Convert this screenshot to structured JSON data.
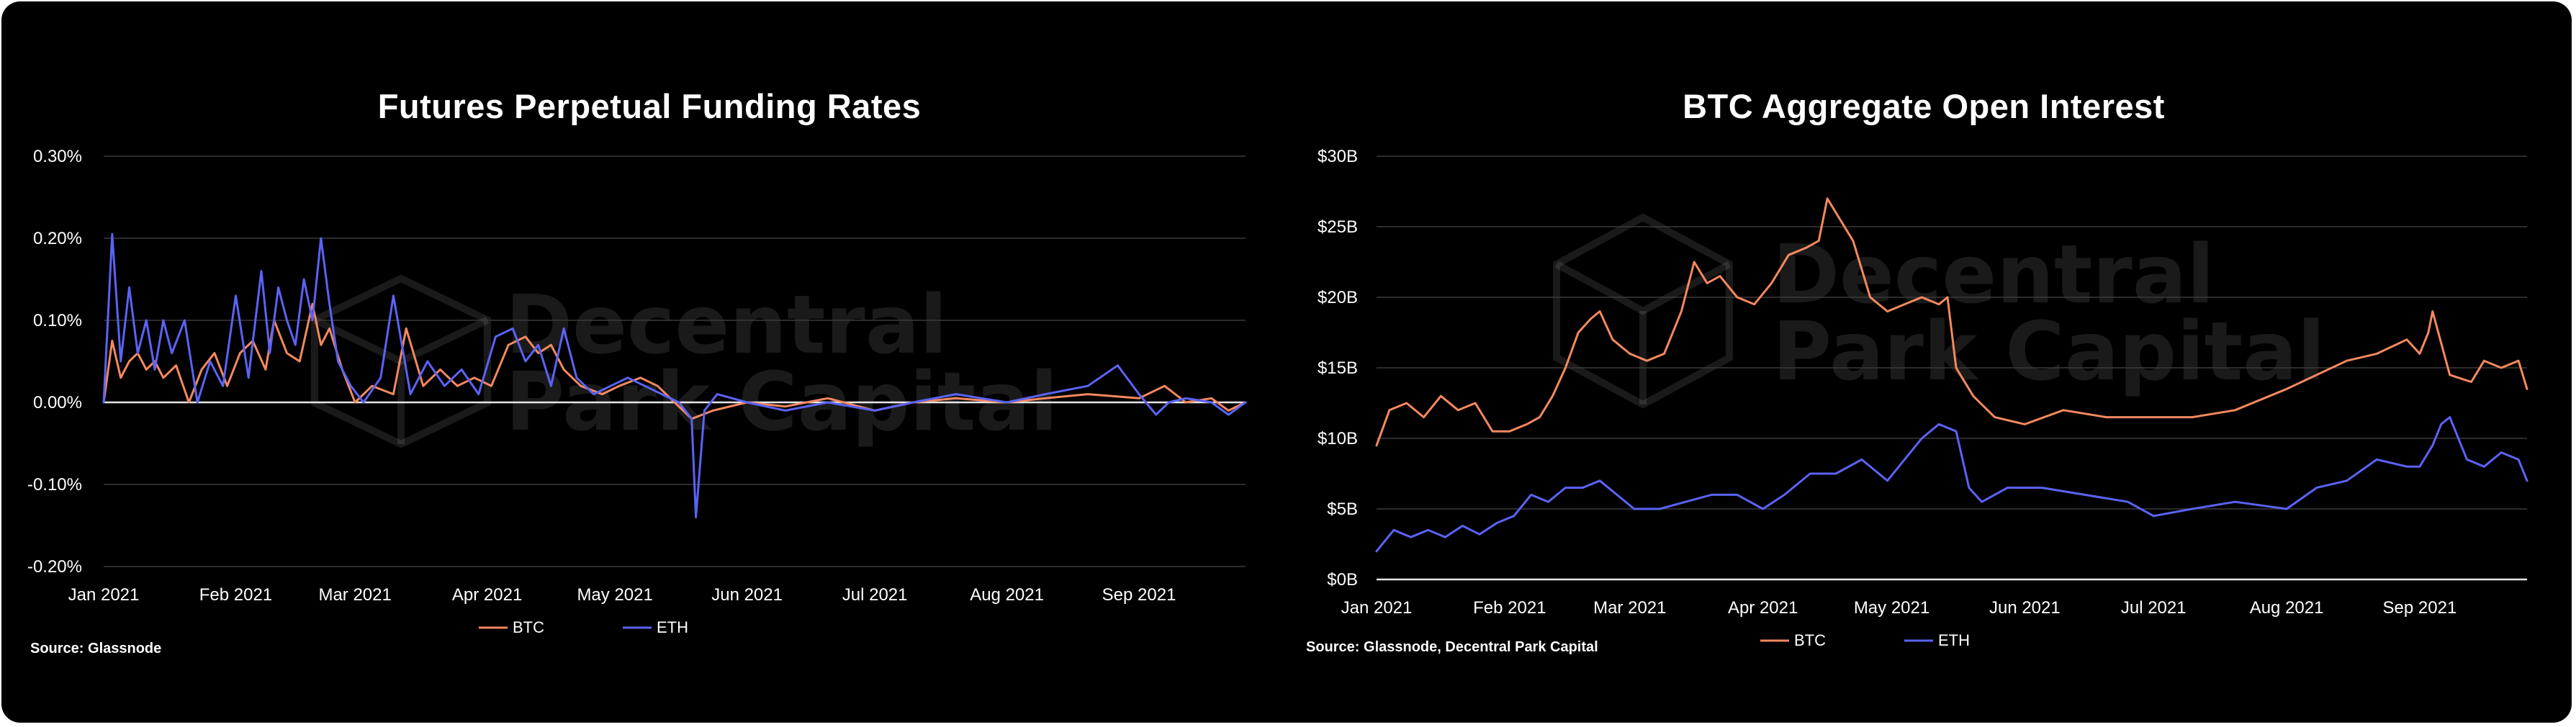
{
  "colors": {
    "btc": "#f4895f",
    "eth": "#5b63f5",
    "grid": "#3a3a3a",
    "text": "#ffffff",
    "background": "#000000"
  },
  "watermark": {
    "line1": "Decentral",
    "line2": "Park Capital"
  },
  "chart_data": [
    {
      "type": "line",
      "title": "Futures Perpetual Funding Rates",
      "source": "Source: Glassnode",
      "x_range": [
        "2021-01-01",
        "2021-09-26"
      ],
      "x_ticks": [
        "Jan 2021",
        "Feb 2021",
        "Mar 2021",
        "Apr 2021",
        "May 2021",
        "Jun 2021",
        "Jul 2021",
        "Aug 2021",
        "Sep 2021"
      ],
      "x_tick_dates": [
        "2021-01-01",
        "2021-02-01",
        "2021-03-01",
        "2021-04-01",
        "2021-05-01",
        "2021-06-01",
        "2021-07-01",
        "2021-08-01",
        "2021-09-01"
      ],
      "y_ticks": [
        "0.30%",
        "0.20%",
        "0.10%",
        "0.00%",
        "-0.10%",
        "-0.20%"
      ],
      "y_tick_values": [
        0.3,
        0.2,
        0.1,
        0.0,
        -0.1,
        -0.2
      ],
      "ylim": [
        -0.2,
        0.3
      ],
      "grid": true,
      "legend": "bottom-center",
      "series": [
        {
          "name": "BTC",
          "dates": [
            "2021-01-01",
            "2021-01-03",
            "2021-01-05",
            "2021-01-07",
            "2021-01-09",
            "2021-01-11",
            "2021-01-13",
            "2021-01-15",
            "2021-01-18",
            "2021-01-21",
            "2021-01-24",
            "2021-01-27",
            "2021-01-30",
            "2021-02-02",
            "2021-02-05",
            "2021-02-08",
            "2021-02-10",
            "2021-02-13",
            "2021-02-16",
            "2021-02-19",
            "2021-02-21",
            "2021-02-23",
            "2021-02-26",
            "2021-03-01",
            "2021-03-05",
            "2021-03-10",
            "2021-03-13",
            "2021-03-17",
            "2021-03-21",
            "2021-03-25",
            "2021-03-29",
            "2021-04-02",
            "2021-04-06",
            "2021-04-10",
            "2021-04-13",
            "2021-04-16",
            "2021-04-19",
            "2021-04-23",
            "2021-04-28",
            "2021-05-02",
            "2021-05-07",
            "2021-05-11",
            "2021-05-15",
            "2021-05-19",
            "2021-05-24",
            "2021-06-01",
            "2021-06-10",
            "2021-06-20",
            "2021-07-01",
            "2021-07-10",
            "2021-07-20",
            "2021-08-01",
            "2021-08-10",
            "2021-08-20",
            "2021-09-01",
            "2021-09-07",
            "2021-09-12",
            "2021-09-18",
            "2021-09-22",
            "2021-09-26"
          ],
          "values": [
            0.0,
            0.075,
            0.03,
            0.05,
            0.06,
            0.04,
            0.05,
            0.03,
            0.045,
            0.0,
            0.04,
            0.06,
            0.02,
            0.06,
            0.075,
            0.04,
            0.1,
            0.06,
            0.05,
            0.12,
            0.07,
            0.09,
            0.04,
            0.0,
            0.02,
            0.01,
            0.09,
            0.02,
            0.04,
            0.02,
            0.03,
            0.02,
            0.07,
            0.08,
            0.06,
            0.07,
            0.04,
            0.02,
            0.01,
            0.02,
            0.03,
            0.02,
            0.0,
            -0.02,
            -0.01,
            0.0,
            -0.005,
            0.005,
            -0.01,
            0.0,
            0.005,
            0.0,
            0.005,
            0.01,
            0.005,
            0.02,
            0.0,
            0.005,
            -0.01,
            0.0
          ]
        },
        {
          "name": "ETH",
          "dates": [
            "2021-01-01",
            "2021-01-03",
            "2021-01-05",
            "2021-01-07",
            "2021-01-09",
            "2021-01-11",
            "2021-01-13",
            "2021-01-15",
            "2021-01-17",
            "2021-01-20",
            "2021-01-23",
            "2021-01-26",
            "2021-01-29",
            "2021-02-01",
            "2021-02-04",
            "2021-02-07",
            "2021-02-09",
            "2021-02-11",
            "2021-02-13",
            "2021-02-15",
            "2021-02-17",
            "2021-02-19",
            "2021-02-21",
            "2021-02-23",
            "2021-02-25",
            "2021-02-28",
            "2021-03-03",
            "2021-03-07",
            "2021-03-10",
            "2021-03-14",
            "2021-03-18",
            "2021-03-22",
            "2021-03-26",
            "2021-03-30",
            "2021-04-03",
            "2021-04-07",
            "2021-04-10",
            "2021-04-13",
            "2021-04-16",
            "2021-04-19",
            "2021-04-22",
            "2021-04-26",
            "2021-04-30",
            "2021-05-04",
            "2021-05-08",
            "2021-05-12",
            "2021-05-16",
            "2021-05-19",
            "2021-05-20",
            "2021-05-22",
            "2021-05-25",
            "2021-06-01",
            "2021-06-10",
            "2021-06-20",
            "2021-07-01",
            "2021-07-10",
            "2021-07-20",
            "2021-08-01",
            "2021-08-10",
            "2021-08-20",
            "2021-08-27",
            "2021-09-01",
            "2021-09-05",
            "2021-09-08",
            "2021-09-12",
            "2021-09-18",
            "2021-09-22",
            "2021-09-26"
          ],
          "values": [
            0.0,
            0.205,
            0.05,
            0.14,
            0.06,
            0.1,
            0.04,
            0.1,
            0.06,
            0.1,
            0.0,
            0.05,
            0.02,
            0.13,
            0.03,
            0.16,
            0.06,
            0.14,
            0.1,
            0.07,
            0.15,
            0.1,
            0.2,
            0.12,
            0.05,
            0.02,
            0.0,
            0.03,
            0.13,
            0.01,
            0.05,
            0.02,
            0.04,
            0.01,
            0.08,
            0.09,
            0.05,
            0.07,
            0.02,
            0.09,
            0.03,
            0.01,
            0.02,
            0.03,
            0.02,
            0.01,
            0.0,
            -0.02,
            -0.14,
            -0.01,
            0.01,
            0.0,
            -0.01,
            0.0,
            -0.01,
            0.0,
            0.01,
            0.0,
            0.01,
            0.02,
            0.045,
            0.01,
            -0.015,
            0.0,
            0.005,
            0.0,
            -0.015,
            0.0
          ]
        }
      ]
    },
    {
      "type": "line",
      "title": "BTC Aggregate Open Interest",
      "source": "Source: Glassnode, Decentral Park Capital",
      "x_range": [
        "2021-01-01",
        "2021-09-26"
      ],
      "x_ticks": [
        "Jan 2021",
        "Feb 2021",
        "Mar 2021",
        "Apr 2021",
        "May 2021",
        "Jun 2021",
        "Jul 2021",
        "Aug 2021",
        "Sep 2021"
      ],
      "x_tick_dates": [
        "2021-01-01",
        "2021-02-01",
        "2021-03-01",
        "2021-04-01",
        "2021-05-01",
        "2021-06-01",
        "2021-07-01",
        "2021-08-01",
        "2021-09-01"
      ],
      "y_ticks": [
        "$30B",
        "$25B",
        "$20B",
        "$15B",
        "$10B",
        "$5B",
        "$0B"
      ],
      "y_tick_values": [
        30,
        25,
        20,
        15,
        10,
        5,
        0
      ],
      "ylim": [
        0,
        30
      ],
      "grid": true,
      "legend": "bottom-center",
      "series": [
        {
          "name": "BTC",
          "dates": [
            "2021-01-01",
            "2021-01-04",
            "2021-01-08",
            "2021-01-12",
            "2021-01-16",
            "2021-01-20",
            "2021-01-24",
            "2021-01-28",
            "2021-02-01",
            "2021-02-05",
            "2021-02-08",
            "2021-02-11",
            "2021-02-14",
            "2021-02-17",
            "2021-02-20",
            "2021-02-22",
            "2021-02-25",
            "2021-03-01",
            "2021-03-05",
            "2021-03-09",
            "2021-03-13",
            "2021-03-16",
            "2021-03-19",
            "2021-03-22",
            "2021-03-26",
            "2021-03-30",
            "2021-04-03",
            "2021-04-07",
            "2021-04-11",
            "2021-04-14",
            "2021-04-16",
            "2021-04-18",
            "2021-04-22",
            "2021-04-26",
            "2021-04-30",
            "2021-05-04",
            "2021-05-08",
            "2021-05-12",
            "2021-05-14",
            "2021-05-16",
            "2021-05-20",
            "2021-05-25",
            "2021-06-01",
            "2021-06-10",
            "2021-06-20",
            "2021-07-01",
            "2021-07-10",
            "2021-07-20",
            "2021-08-01",
            "2021-08-08",
            "2021-08-15",
            "2021-08-22",
            "2021-08-29",
            "2021-09-01",
            "2021-09-03",
            "2021-09-04",
            "2021-09-08",
            "2021-09-13",
            "2021-09-16",
            "2021-09-20",
            "2021-09-24",
            "2021-09-26"
          ],
          "values": [
            9.5,
            12.0,
            12.5,
            11.5,
            13.0,
            12.0,
            12.5,
            10.5,
            10.5,
            11.0,
            11.5,
            13.0,
            15.0,
            17.5,
            18.5,
            19.0,
            17.0,
            16.0,
            15.5,
            16.0,
            19.0,
            22.5,
            21.0,
            21.5,
            20.0,
            19.5,
            21.0,
            23.0,
            23.5,
            24.0,
            27.0,
            26.0,
            24.0,
            20.0,
            19.0,
            19.5,
            20.0,
            19.5,
            20.0,
            15.0,
            13.0,
            11.5,
            11.0,
            12.0,
            11.5,
            11.5,
            11.5,
            12.0,
            13.5,
            14.5,
            15.5,
            16.0,
            17.0,
            16.0,
            17.5,
            19.0,
            14.5,
            14.0,
            15.5,
            15.0,
            15.5,
            13.5
          ]
        },
        {
          "name": "ETH",
          "dates": [
            "2021-01-01",
            "2021-01-05",
            "2021-01-09",
            "2021-01-13",
            "2021-01-17",
            "2021-01-21",
            "2021-01-25",
            "2021-01-29",
            "2021-02-02",
            "2021-02-06",
            "2021-02-10",
            "2021-02-14",
            "2021-02-18",
            "2021-02-22",
            "2021-02-26",
            "2021-03-02",
            "2021-03-08",
            "2021-03-14",
            "2021-03-20",
            "2021-03-26",
            "2021-04-01",
            "2021-04-06",
            "2021-04-12",
            "2021-04-18",
            "2021-04-24",
            "2021-04-30",
            "2021-05-04",
            "2021-05-08",
            "2021-05-12",
            "2021-05-16",
            "2021-05-19",
            "2021-05-22",
            "2021-05-28",
            "2021-06-05",
            "2021-06-15",
            "2021-06-25",
            "2021-07-01",
            "2021-07-10",
            "2021-07-20",
            "2021-08-01",
            "2021-08-08",
            "2021-08-15",
            "2021-08-22",
            "2021-08-29",
            "2021-09-01",
            "2021-09-04",
            "2021-09-06",
            "2021-09-08",
            "2021-09-12",
            "2021-09-16",
            "2021-09-20",
            "2021-09-24",
            "2021-09-26"
          ],
          "values": [
            2.0,
            3.5,
            3.0,
            3.5,
            3.0,
            3.8,
            3.2,
            4.0,
            4.5,
            6.0,
            5.5,
            6.5,
            6.5,
            7.0,
            6.0,
            5.0,
            5.0,
            5.5,
            6.0,
            6.0,
            5.0,
            6.0,
            7.5,
            7.5,
            8.5,
            7.0,
            8.5,
            10.0,
            11.0,
            10.5,
            6.5,
            5.5,
            6.5,
            6.5,
            6.0,
            5.5,
            4.5,
            5.0,
            5.5,
            5.0,
            6.5,
            7.0,
            8.5,
            8.0,
            8.0,
            9.5,
            11.0,
            11.5,
            8.5,
            8.0,
            9.0,
            8.5,
            7.0
          ]
        }
      ]
    }
  ]
}
